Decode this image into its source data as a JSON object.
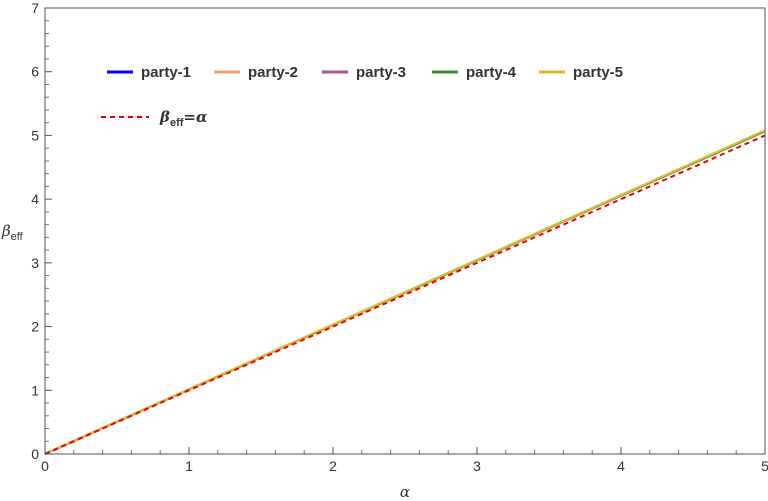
{
  "chart_data": {
    "type": "line",
    "title": "",
    "xlabel": "α",
    "ylabel_main": "β",
    "ylabel_sub": "eff",
    "xlim": [
      0,
      5
    ],
    "ylim": [
      0,
      7
    ],
    "xticks": [
      0,
      1,
      2,
      3,
      4,
      5
    ],
    "yticks": [
      0,
      1,
      2,
      3,
      4,
      5,
      6,
      7
    ],
    "grid": false,
    "legend_position": "top-left",
    "series": [
      {
        "name": "party-1",
        "color": "#0000ff",
        "style": "solid",
        "x": [
          0,
          5
        ],
        "y": [
          0,
          5.07
        ]
      },
      {
        "name": "party-2",
        "color": "#f0a070",
        "style": "solid",
        "x": [
          0,
          5
        ],
        "y": [
          0,
          5.07
        ]
      },
      {
        "name": "party-3",
        "color": "#b0509a",
        "style": "solid",
        "x": [
          0,
          5
        ],
        "y": [
          0,
          5.07
        ]
      },
      {
        "name": "party-4",
        "color": "#3a9030",
        "style": "solid",
        "x": [
          0,
          5
        ],
        "y": [
          0,
          5.07
        ]
      },
      {
        "name": "party-5",
        "color": "#d8bc30",
        "style": "solid",
        "x": [
          0,
          5
        ],
        "y": [
          0,
          5.08
        ]
      }
    ],
    "reference": {
      "name_main": "β",
      "name_sub": "eff",
      "name_rest": "=α",
      "color": "#ee0000",
      "style": "dashed",
      "x": [
        0,
        5
      ],
      "y": [
        0,
        5
      ]
    }
  }
}
